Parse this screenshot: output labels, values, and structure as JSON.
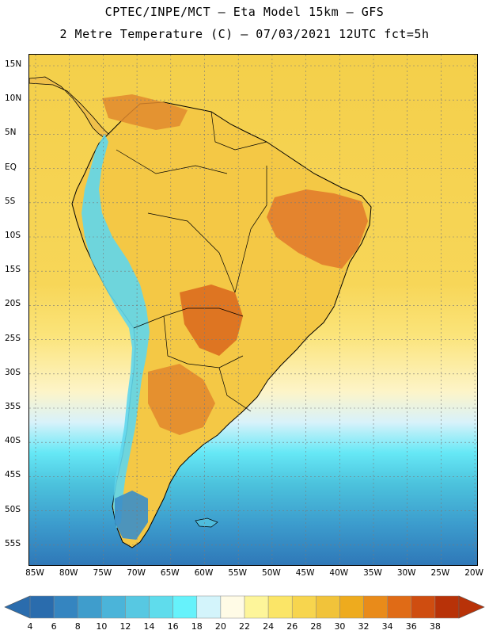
{
  "header": {
    "line1": "CPTEC/INPE/MCT –  Eta Model 15km – GFS",
    "line2": "2 Metre Temperature (C) – 07/03/2021 12UTC fct=5h"
  },
  "map": {
    "lat_labels": [
      "15N",
      "10N",
      "5N",
      "EQ",
      "5S",
      "10S",
      "15S",
      "20S",
      "25S",
      "30S",
      "35S",
      "40S",
      "45S",
      "50S",
      "55S"
    ],
    "lon_labels": [
      "85W",
      "80W",
      "75W",
      "70W",
      "65W",
      "60W",
      "55W",
      "50W",
      "45W",
      "40W",
      "35W",
      "30W",
      "25W",
      "20W"
    ]
  },
  "colorbar": {
    "labels": [
      "4",
      "6",
      "8",
      "10",
      "12",
      "14",
      "16",
      "18",
      "20",
      "22",
      "24",
      "26",
      "28",
      "30",
      "32",
      "34",
      "36",
      "38"
    ],
    "colors": [
      "#2a6cad",
      "#3585c0",
      "#3f9dcc",
      "#4bb4d9",
      "#57c8e2",
      "#5fdcec",
      "#66f2fb",
      "#d3f4fb",
      "#fffbe6",
      "#fdf59a",
      "#fbe567",
      "#f7d54e",
      "#f1c33a",
      "#eeab1e",
      "#e98b1a",
      "#e06b16",
      "#cf4d10",
      "#b83208"
    ]
  }
}
